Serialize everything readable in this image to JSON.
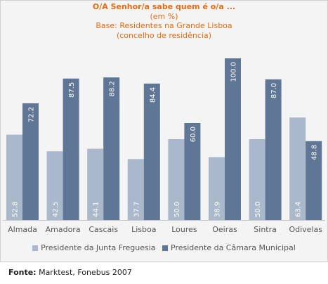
{
  "chart_data": {
    "type": "bar",
    "title": "O/A Senhor/a sabe quem é o/a ...",
    "subtitle_lines": [
      "(em %)",
      "Base: Residentes na Grande Lisboa",
      "(concelho de residência)"
    ],
    "categories": [
      "Almada",
      "Amadora",
      "Cascais",
      "Lisboa",
      "Loures",
      "Oeiras",
      "Sintra",
      "Odivelas"
    ],
    "series": [
      {
        "name": "Presidente da Junta Freguesia",
        "color": "#a9b8cb",
        "values": [
          52.8,
          42.5,
          44.1,
          37.7,
          50.0,
          38.9,
          50.0,
          63.4
        ]
      },
      {
        "name": "Presidente da Câmara Municipal",
        "color": "#5f7696",
        "values": [
          72.2,
          87.5,
          88.2,
          84.4,
          60.0,
          100.0,
          87.0,
          48.8
        ]
      }
    ],
    "value_labels": [
      [
        "52.8",
        "42.5",
        "44.1",
        "37.7",
        "50.0",
        "38.9",
        "50.0",
        "63.4"
      ],
      [
        "72.2",
        "87.5",
        "88.2",
        "84.4",
        "60.0",
        "100.0",
        "87.0",
        "48.8"
      ]
    ],
    "ylim": [
      0,
      100
    ],
    "grid": false,
    "legend_position": "bottom"
  },
  "source": {
    "label": "Fonte:",
    "text": "Marktest, Fonebus 2007"
  }
}
